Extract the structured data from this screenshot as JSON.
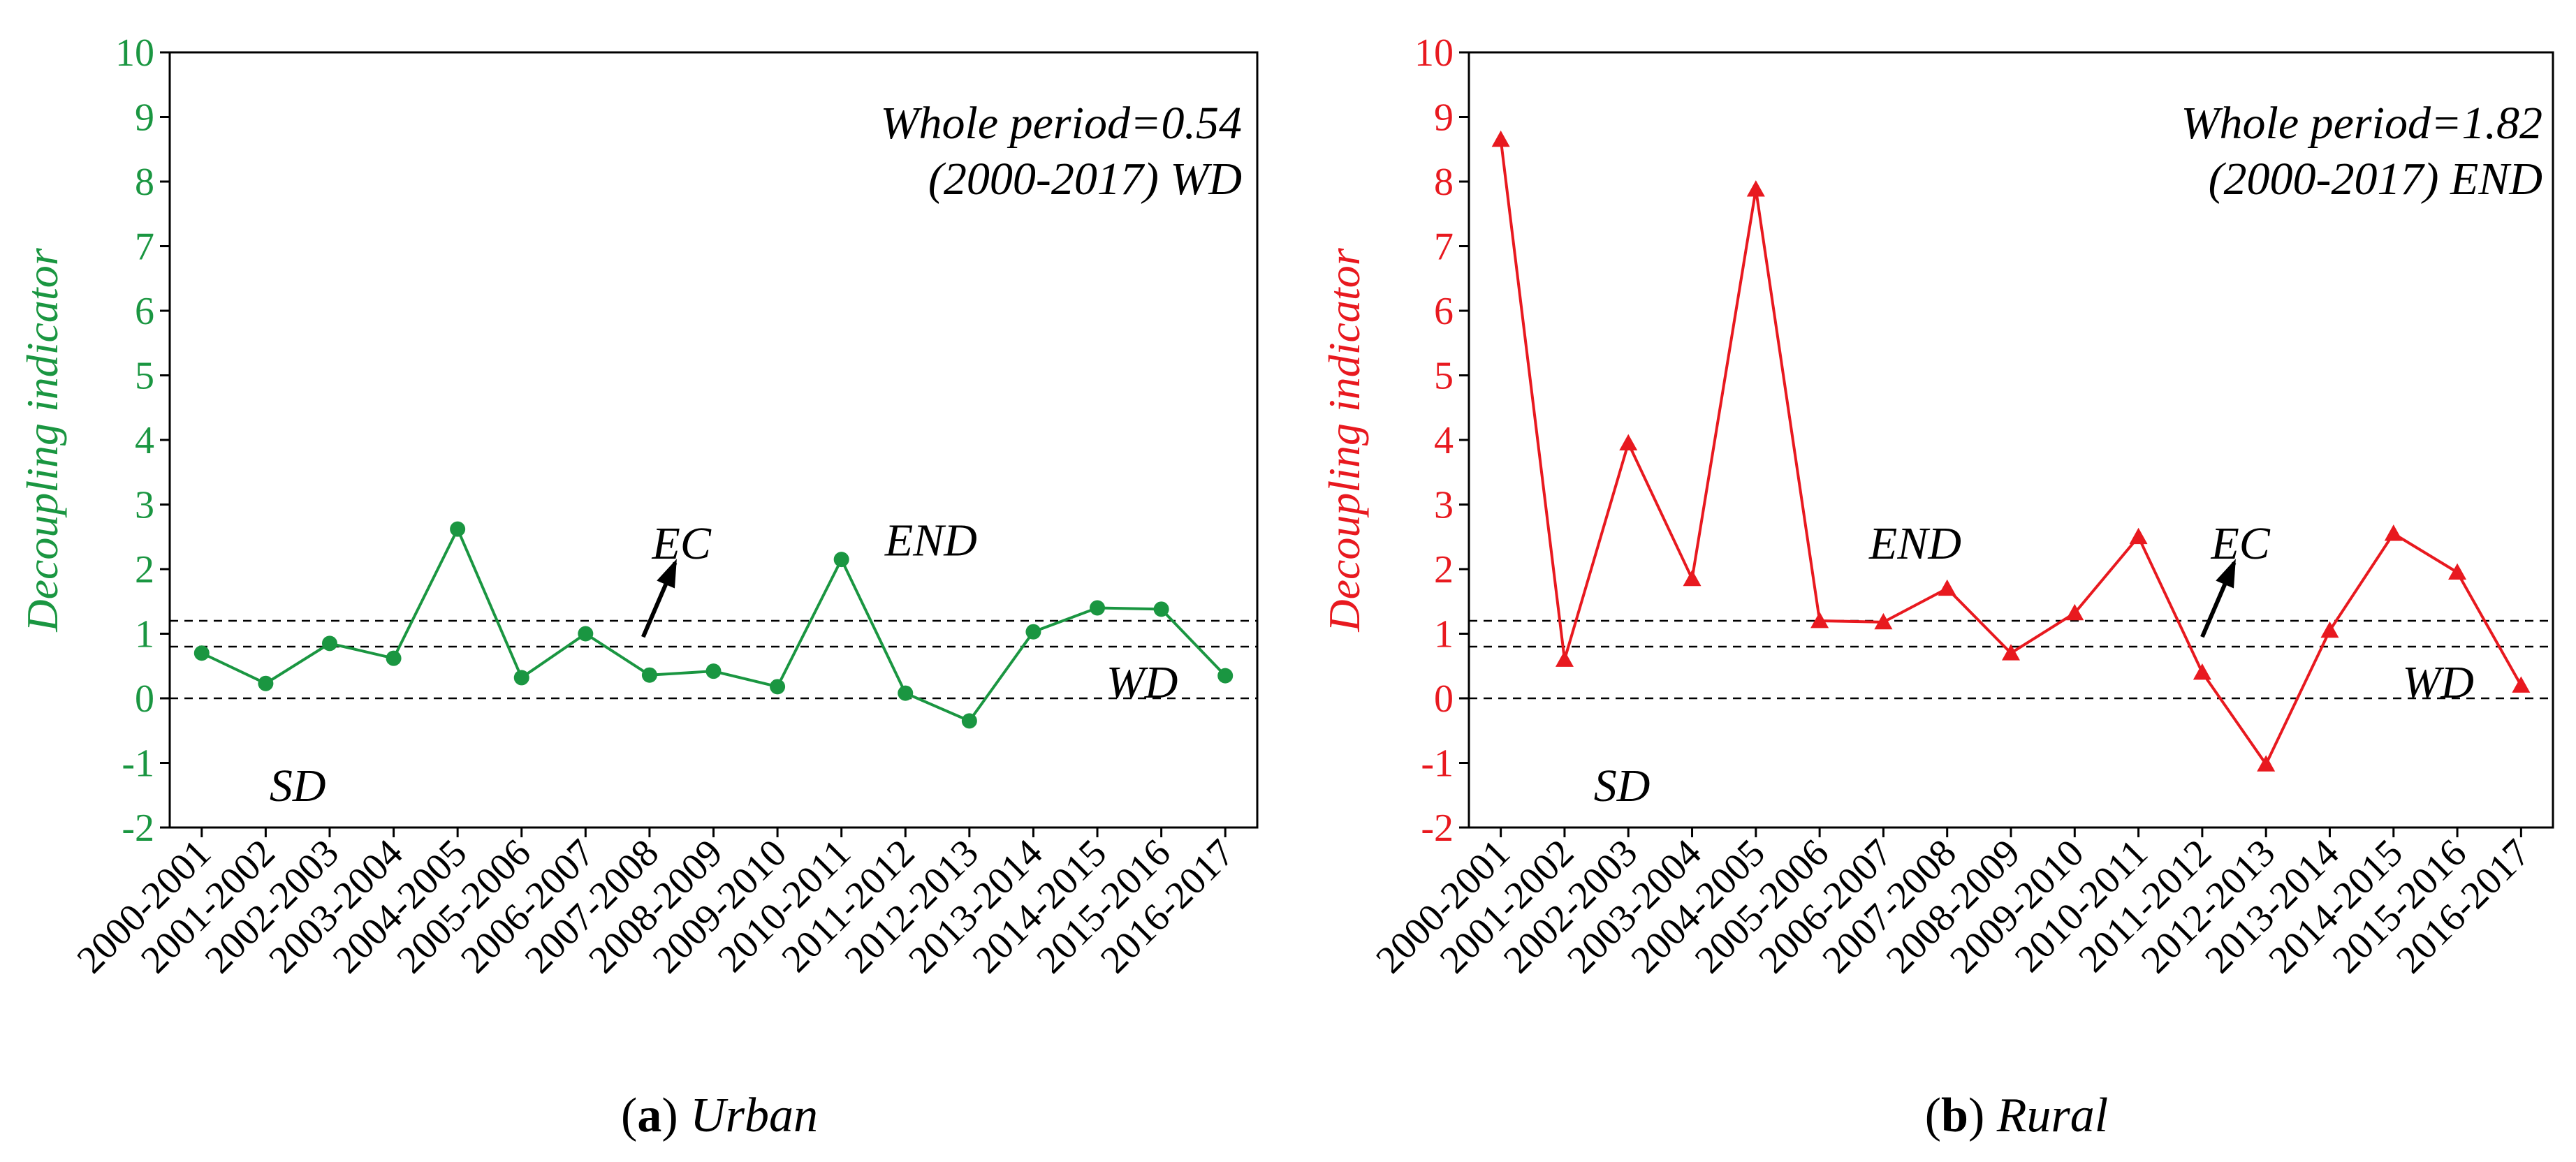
{
  "chart_data": [
    {
      "type": "line",
      "panel": "a",
      "caption_letter": "a",
      "caption_text": "Urban",
      "color": "#1a9641",
      "marker": "circle",
      "ylabel": "Decoupling indicator",
      "ylim": [
        -2,
        10
      ],
      "yticks": [
        -2,
        -1,
        0,
        1,
        2,
        3,
        4,
        5,
        6,
        7,
        8,
        9,
        10
      ],
      "categories": [
        "2000-2001",
        "2001-2002",
        "2002-2003",
        "2003-2004",
        "2004-2005",
        "2005-2006",
        "2006-2007",
        "2007-2008",
        "2008-2009",
        "2009-2010",
        "2010-2011",
        "2011-2012",
        "2012-2013",
        "2013-2014",
        "2014-2015",
        "2015-2016",
        "2016-2017"
      ],
      "values": [
        0.7,
        0.23,
        0.85,
        0.62,
        2.62,
        0.32,
        1.0,
        0.36,
        0.42,
        0.18,
        2.15,
        0.08,
        -0.35,
        1.03,
        1.4,
        1.38,
        0.35
      ],
      "reference_lines": [
        0,
        0.8,
        1.2
      ],
      "annotation_line1": "Whole period=0.54",
      "annotation_line2": "(2000-2017)   WD",
      "regions": [
        {
          "label": "EC",
          "x": 7.5,
          "y": 2.4
        },
        {
          "label": "END",
          "x": 11.4,
          "y": 2.45
        },
        {
          "label": "WD",
          "x": 14.7,
          "y": 0.25
        },
        {
          "label": "SD",
          "x": 1.5,
          "y": -1.35
        }
      ],
      "arrow": {
        "from_x": 6.9,
        "from_y": 0.95,
        "to_x": 7.4,
        "to_y": 2.1
      }
    },
    {
      "type": "line",
      "panel": "b",
      "caption_letter": "b",
      "caption_text": "Rural",
      "color": "#e8191f",
      "marker": "triangle",
      "ylabel": "Decoupling indicator",
      "ylim": [
        -2,
        10
      ],
      "yticks": [
        -2,
        -1,
        0,
        1,
        2,
        3,
        4,
        5,
        6,
        7,
        8,
        9,
        10
      ],
      "categories": [
        "2000-2001",
        "2001-2002",
        "2002-2003",
        "2003-2004",
        "2004-2005",
        "2005-2006",
        "2006-2007",
        "2007-2008",
        "2008-2009",
        "2009-2010",
        "2010-2011",
        "2011-2012",
        "2012-2013",
        "2013-2014",
        "2014-2015",
        "2015-2016",
        "2016-2017"
      ],
      "values": [
        8.65,
        0.6,
        3.95,
        1.85,
        7.88,
        1.2,
        1.18,
        1.7,
        0.7,
        1.32,
        2.5,
        0.4,
        -1.02,
        1.05,
        2.55,
        1.95,
        0.2
      ],
      "reference_lines": [
        0,
        0.8,
        1.2
      ],
      "annotation_line1": "Whole period=1.82",
      "annotation_line2": "(2000-2017)  END",
      "regions": [
        {
          "label": "END",
          "x": 6.5,
          "y": 2.4
        },
        {
          "label": "EC",
          "x": 11.6,
          "y": 2.4
        },
        {
          "label": "WD",
          "x": 14.7,
          "y": 0.25
        },
        {
          "label": "SD",
          "x": 1.9,
          "y": -1.35
        }
      ],
      "arrow": {
        "from_x": 11.0,
        "from_y": 0.95,
        "to_x": 11.5,
        "to_y": 2.1
      }
    }
  ]
}
